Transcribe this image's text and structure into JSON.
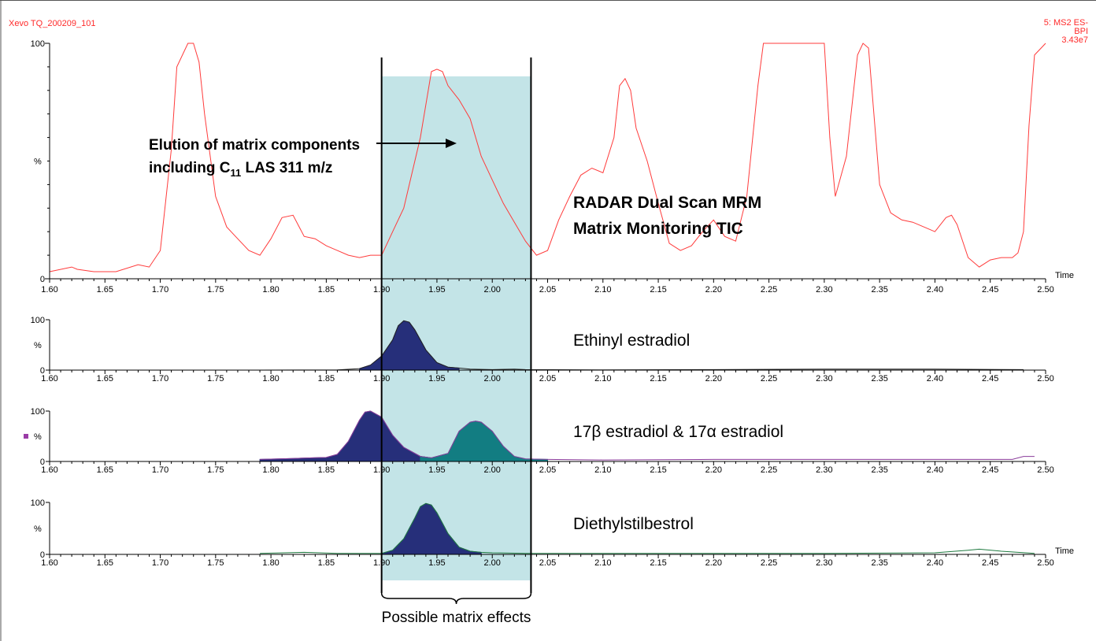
{
  "header": {
    "instrument": "Xevo TQ_200209_101",
    "function_line1": "5: MS2 ES-",
    "function_line2": "BPI",
    "function_line3": "3.43e7"
  },
  "annotations": {
    "elution_line1": "Elution of matrix components",
    "elution_line2_pre": "including C",
    "elution_line2_sub": "11",
    "elution_line2_post": " LAS 311 m/z",
    "radar_line1": "RADAR Dual Scan MRM",
    "radar_line2": "Matrix Monitoring TIC",
    "matrix_effects": "Possible matrix effects",
    "highlight_range": [
      1.9,
      2.035
    ]
  },
  "colors": {
    "tic": "#ff3b3b",
    "highlight": "#c3e4e7",
    "peak_navy": "#262f7a",
    "peak_teal": "#127d82",
    "baseline_purple": "#8a3c9a",
    "baseline_green": "#1f7a40",
    "header_red": "#ff2a2a"
  },
  "chart_data": [
    {
      "type": "line",
      "name": "tic",
      "xlim": [
        1.6,
        2.5
      ],
      "ylim": [
        0,
        100
      ],
      "y_ticks": [
        "0",
        "100"
      ],
      "ylabel": "%",
      "xlabel": "Time",
      "x_ticks": [
        "1.60",
        "1.65",
        "1.70",
        "1.75",
        "1.80",
        "1.85",
        "1.90",
        "1.95",
        "2.00",
        "2.05",
        "2.10",
        "2.15",
        "2.20",
        "2.25",
        "2.30",
        "2.35",
        "2.40",
        "2.45",
        "2.50"
      ],
      "series": [
        {
          "x": [
            1.6,
            1.62,
            1.625,
            1.64,
            1.66,
            1.68,
            1.69,
            1.7,
            1.71,
            1.715,
            1.725,
            1.73,
            1.735,
            1.74,
            1.75,
            1.76,
            1.77,
            1.78,
            1.79,
            1.8,
            1.81,
            1.82,
            1.83,
            1.84,
            1.85,
            1.86,
            1.87,
            1.88,
            1.89,
            1.9,
            1.91,
            1.92,
            1.935,
            1.945,
            1.95,
            1.955,
            1.96,
            1.97,
            1.98,
            1.99,
            2.0,
            2.01,
            2.02,
            2.03,
            2.04,
            2.05,
            2.06,
            2.07,
            2.08,
            2.09,
            2.1,
            2.11,
            2.115,
            2.12,
            2.125,
            2.13,
            2.14,
            2.15,
            2.16,
            2.17,
            2.18,
            2.19,
            2.2,
            2.21,
            2.22,
            2.23,
            2.24,
            2.245,
            2.25,
            2.26,
            2.27,
            2.28,
            2.29,
            2.3,
            2.305,
            2.31,
            2.32,
            2.33,
            2.335,
            2.34,
            2.35,
            2.36,
            2.37,
            2.38,
            2.39,
            2.4,
            2.41,
            2.415,
            2.42,
            2.43,
            2.44,
            2.45,
            2.46,
            2.47,
            2.475,
            2.48,
            2.485,
            2.49,
            2.5
          ],
          "y": [
            3,
            5,
            4,
            3,
            3,
            6,
            5,
            12,
            55,
            90,
            100,
            100,
            92,
            70,
            35,
            22,
            17,
            12,
            10,
            17,
            26,
            27,
            18,
            17,
            14,
            12,
            10,
            9,
            10,
            10,
            20,
            30,
            60,
            88,
            89,
            88,
            82,
            76,
            68,
            52,
            42,
            32,
            24,
            16,
            10,
            12,
            25,
            35,
            44,
            47,
            45,
            60,
            82,
            85,
            80,
            64,
            50,
            32,
            15,
            12,
            14,
            20,
            25,
            18,
            16,
            35,
            82,
            100,
            100,
            100,
            100,
            100,
            100,
            100,
            60,
            35,
            52,
            95,
            100,
            98,
            40,
            28,
            25,
            24,
            22,
            20,
            26,
            27,
            23,
            9,
            5,
            8,
            9,
            9,
            11,
            20,
            65,
            95,
            100
          ]
        }
      ]
    },
    {
      "type": "area",
      "name": "ethinyl-estradiol",
      "title": "Ethinyl estradiol",
      "xlim": [
        1.6,
        2.5
      ],
      "ylim": [
        0,
        100
      ],
      "y_ticks": [
        "0",
        "100"
      ],
      "ylabel": "%",
      "x_ticks": [
        "1.60",
        "1.65",
        "1.70",
        "1.75",
        "1.80",
        "1.85",
        "1.90",
        "1.95",
        "2.00",
        "2.05",
        "2.10",
        "2.15",
        "2.20",
        "2.25",
        "2.30",
        "2.35",
        "2.40",
        "2.45",
        "2.50"
      ],
      "series": [
        {
          "x": [
            1.79,
            1.86,
            1.88,
            1.89,
            1.9,
            1.91,
            1.915,
            1.92,
            1.925,
            1.93,
            1.935,
            1.94,
            1.95,
            1.96,
            1.97,
            1.98,
            2.0,
            2.02,
            2.03,
            2.1,
            2.2,
            2.3,
            2.4,
            2.48
          ],
          "y": [
            0,
            0.5,
            3,
            10,
            28,
            60,
            88,
            98,
            95,
            80,
            60,
            40,
            15,
            6,
            4,
            2,
            1,
            2,
            1,
            0.5,
            1,
            2,
            2,
            1
          ]
        }
      ]
    },
    {
      "type": "area",
      "name": "estradiol-isomers",
      "title": "17β estradiol & 17α estradiol",
      "xlim": [
        1.6,
        2.5
      ],
      "ylim": [
        0,
        100
      ],
      "y_ticks": [
        "0",
        "100"
      ],
      "ylabel": "%",
      "x_ticks": [
        "1.60",
        "1.65",
        "1.70",
        "1.75",
        "1.80",
        "1.85",
        "1.90",
        "1.95",
        "2.00",
        "2.05",
        "2.10",
        "2.15",
        "2.20",
        "2.25",
        "2.30",
        "2.35",
        "2.40",
        "2.45",
        "2.50"
      ],
      "series": [
        {
          "x": [
            1.79,
            1.82,
            1.85,
            1.86,
            1.87,
            1.88,
            1.885,
            1.89,
            1.9,
            1.91,
            1.92,
            1.935,
            1.945,
            1.96,
            1.97,
            1.98,
            1.985,
            1.99,
            2.0,
            2.01,
            2.02,
            2.03,
            2.05,
            2.1,
            2.2,
            2.3,
            2.4,
            2.47,
            2.48,
            2.49
          ],
          "y": [
            4,
            6,
            8,
            14,
            40,
            82,
            98,
            100,
            88,
            52,
            28,
            10,
            7,
            16,
            60,
            78,
            80,
            78,
            60,
            30,
            10,
            5,
            4,
            3,
            4,
            4,
            4,
            4,
            10,
            10
          ]
        }
      ]
    },
    {
      "type": "area",
      "name": "diethylstilbestrol",
      "title": "Diethylstilbestrol",
      "xlabel": "Time",
      "xlim": [
        1.6,
        2.5
      ],
      "ylim": [
        0,
        100
      ],
      "y_ticks": [
        "0",
        "100"
      ],
      "ylabel": "%",
      "x_ticks": [
        "1.60",
        "1.65",
        "1.70",
        "1.75",
        "1.80",
        "1.85",
        "1.90",
        "1.95",
        "2.00",
        "2.05",
        "2.10",
        "2.15",
        "2.20",
        "2.25",
        "2.30",
        "2.35",
        "2.40",
        "2.45",
        "2.50"
      ],
      "series": [
        {
          "x": [
            1.79,
            1.83,
            1.86,
            1.9,
            1.91,
            1.92,
            1.93,
            1.935,
            1.94,
            1.945,
            1.95,
            1.96,
            1.97,
            1.98,
            1.99,
            2.0,
            2.03,
            2.1,
            2.2,
            2.3,
            2.4,
            2.43,
            2.44,
            2.46,
            2.49
          ],
          "y": [
            2,
            4,
            2,
            2,
            8,
            30,
            70,
            92,
            98,
            95,
            80,
            40,
            14,
            6,
            4,
            3,
            2,
            2,
            2,
            2,
            3,
            8,
            10,
            6,
            2
          ]
        }
      ]
    }
  ]
}
